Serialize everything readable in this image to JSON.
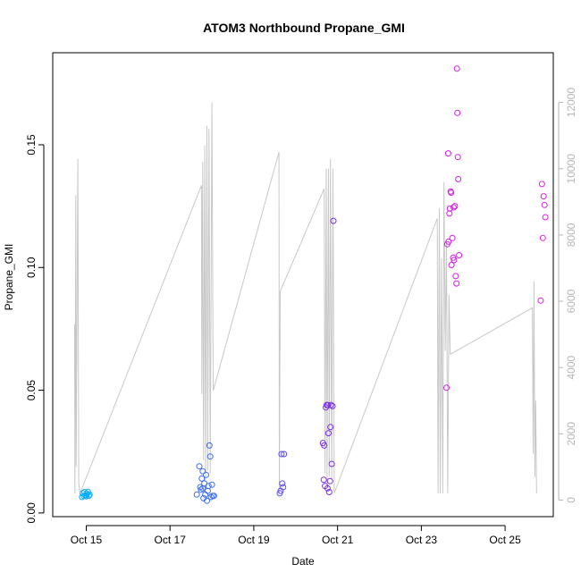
{
  "chart_data": {
    "type": "scatter",
    "title": "ATOM3 Northbound Propane_GMI",
    "xlabel": "Date",
    "ylabel": "Propane_GMI",
    "x_ticks": [
      {
        "value": 14.8,
        "label": "Oct 15"
      },
      {
        "value": 16.8,
        "label": "Oct 17"
      },
      {
        "value": 18.8,
        "label": "Oct 19"
      },
      {
        "value": 20.8,
        "label": "Oct 21"
      },
      {
        "value": 22.8,
        "label": "Oct 23"
      },
      {
        "value": 24.8,
        "label": "Oct 25"
      }
    ],
    "xlim": [
      14.0,
      25.95
    ],
    "ylim": [
      -0.0015,
      0.1875
    ],
    "y_ticks": [
      {
        "value": 0.0,
        "label": "0.00"
      },
      {
        "value": 0.05,
        "label": "0.05"
      },
      {
        "value": 0.1,
        "label": "0.10"
      },
      {
        "value": 0.15,
        "label": "0.15"
      }
    ],
    "y2lim": [
      -500,
      13500
    ],
    "y2_ticks": [
      {
        "value": 0,
        "label": "0"
      },
      {
        "value": 2000,
        "label": "2000"
      },
      {
        "value": 4000,
        "label": "4000"
      },
      {
        "value": 6000,
        "label": "6000"
      },
      {
        "value": 8000,
        "label": "8000"
      },
      {
        "value": 10000,
        "label": "10000"
      },
      {
        "value": 12000,
        "label": "12000"
      }
    ],
    "grid": false,
    "line_color": "#c8c8c8",
    "secondary_line": [
      [
        14.52,
        5300
      ],
      [
        14.53,
        200
      ],
      [
        14.55,
        9200
      ],
      [
        14.56,
        1000
      ],
      [
        14.6,
        10300
      ],
      [
        14.62,
        500
      ],
      [
        14.65,
        200
      ],
      [
        17.55,
        9500
      ],
      [
        17.56,
        3200
      ],
      [
        17.58,
        10200
      ],
      [
        17.6,
        1200
      ],
      [
        17.63,
        10700
      ],
      [
        17.65,
        600
      ],
      [
        17.68,
        11300
      ],
      [
        17.7,
        900
      ],
      [
        17.73,
        11200
      ],
      [
        17.76,
        800
      ],
      [
        17.8,
        12000
      ],
      [
        17.83,
        3300
      ],
      [
        19.4,
        10500
      ],
      [
        19.41,
        200
      ],
      [
        19.43,
        6300
      ],
      [
        20.48,
        9400
      ],
      [
        20.5,
        800
      ],
      [
        20.53,
        10000
      ],
      [
        20.55,
        500
      ],
      [
        20.58,
        10000
      ],
      [
        20.6,
        700
      ],
      [
        20.63,
        10300
      ],
      [
        20.66,
        600
      ],
      [
        20.69,
        10000
      ],
      [
        20.72,
        200
      ],
      [
        23.18,
        8500
      ],
      [
        23.2,
        200
      ],
      [
        23.23,
        8800
      ],
      [
        23.25,
        200
      ],
      [
        23.28,
        7300
      ],
      [
        23.31,
        200
      ],
      [
        23.34,
        9600
      ],
      [
        23.37,
        4500
      ],
      [
        23.4,
        7800
      ],
      [
        23.43,
        200
      ],
      [
        23.46,
        6200
      ],
      [
        23.49,
        4400
      ],
      [
        25.45,
        5800
      ],
      [
        25.47,
        1400
      ],
      [
        25.49,
        6600
      ],
      [
        25.51,
        700
      ],
      [
        25.53,
        3000
      ],
      [
        25.55,
        200
      ]
    ],
    "series": [
      {
        "color": "#00aaff",
        "points": [
          [
            14.7,
            0.0065
          ],
          [
            14.72,
            0.008
          ],
          [
            14.74,
            0.007
          ],
          [
            14.76,
            0.0085
          ],
          [
            14.78,
            0.0072
          ],
          [
            14.8,
            0.0068
          ],
          [
            14.82,
            0.0078
          ],
          [
            14.84,
            0.0086
          ],
          [
            14.86,
            0.007
          ],
          [
            14.88,
            0.0075
          ]
        ]
      },
      {
        "color": "#3a6cf5",
        "points": [
          [
            17.44,
            0.0075
          ],
          [
            17.5,
            0.019
          ],
          [
            17.52,
            0.0105
          ],
          [
            17.54,
            0.0095
          ],
          [
            17.56,
            0.014
          ],
          [
            17.58,
            0.017
          ],
          [
            17.6,
            0.006
          ],
          [
            17.62,
            0.012
          ],
          [
            17.64,
            0.0075
          ],
          [
            17.66,
            0.0155
          ],
          [
            17.68,
            0.005
          ],
          [
            17.7,
            0.009
          ],
          [
            17.72,
            0.011
          ],
          [
            17.74,
            0.0275
          ],
          [
            17.76,
            0.023
          ],
          [
            17.78,
            0.0065
          ],
          [
            17.8,
            0.0115
          ],
          [
            17.82,
            0.007
          ],
          [
            17.85,
            0.007
          ],
          [
            17.58,
            0.01
          ]
        ]
      },
      {
        "color": "#5a4cf0",
        "points": [
          [
            19.42,
            0.008
          ],
          [
            19.44,
            0.009
          ],
          [
            19.46,
            0.024
          ],
          [
            19.48,
            0.012
          ],
          [
            19.5,
            0.0105
          ],
          [
            19.52,
            0.024
          ]
        ]
      },
      {
        "color": "#7a30e8",
        "points": [
          [
            20.45,
            0.0285
          ],
          [
            20.47,
            0.0135
          ],
          [
            20.48,
            0.0275
          ],
          [
            20.5,
            0.011
          ],
          [
            20.52,
            0.043
          ],
          [
            20.54,
            0.044
          ],
          [
            20.56,
            0.01
          ],
          [
            20.57,
            0.044
          ],
          [
            20.58,
            0.0325
          ],
          [
            20.6,
            0.0085
          ],
          [
            20.62,
            0.013
          ],
          [
            20.63,
            0.035
          ],
          [
            20.64,
            0.044
          ],
          [
            20.66,
            0.02
          ],
          [
            20.68,
            0.0435
          ],
          [
            20.7,
            0.119
          ]
        ]
      },
      {
        "color": "#d01fe6",
        "points": [
          [
            23.4,
            0.051
          ],
          [
            23.42,
            0.1095
          ],
          [
            23.44,
            0.1465
          ],
          [
            23.45,
            0.1105
          ],
          [
            23.47,
            0.122
          ],
          [
            23.48,
            0.124
          ],
          [
            23.5,
            0.131
          ],
          [
            23.51,
            0.1305
          ],
          [
            23.52,
            0.101
          ],
          [
            23.54,
            0.112
          ],
          [
            23.56,
            0.104
          ],
          [
            23.57,
            0.1245
          ],
          [
            23.58,
            0.103
          ],
          [
            23.6,
            0.125
          ],
          [
            23.62,
            0.0965
          ],
          [
            23.64,
            0.0935
          ],
          [
            23.65,
            0.181
          ],
          [
            23.66,
            0.163
          ],
          [
            23.67,
            0.145
          ],
          [
            23.68,
            0.136
          ],
          [
            23.7,
            0.105
          ]
        ]
      },
      {
        "color": "#e020e0",
        "points": [
          [
            25.65,
            0.0865
          ],
          [
            25.68,
            0.134
          ],
          [
            25.7,
            0.112
          ],
          [
            25.72,
            0.129
          ],
          [
            25.74,
            0.1255
          ],
          [
            25.76,
            0.1205
          ]
        ]
      }
    ]
  }
}
